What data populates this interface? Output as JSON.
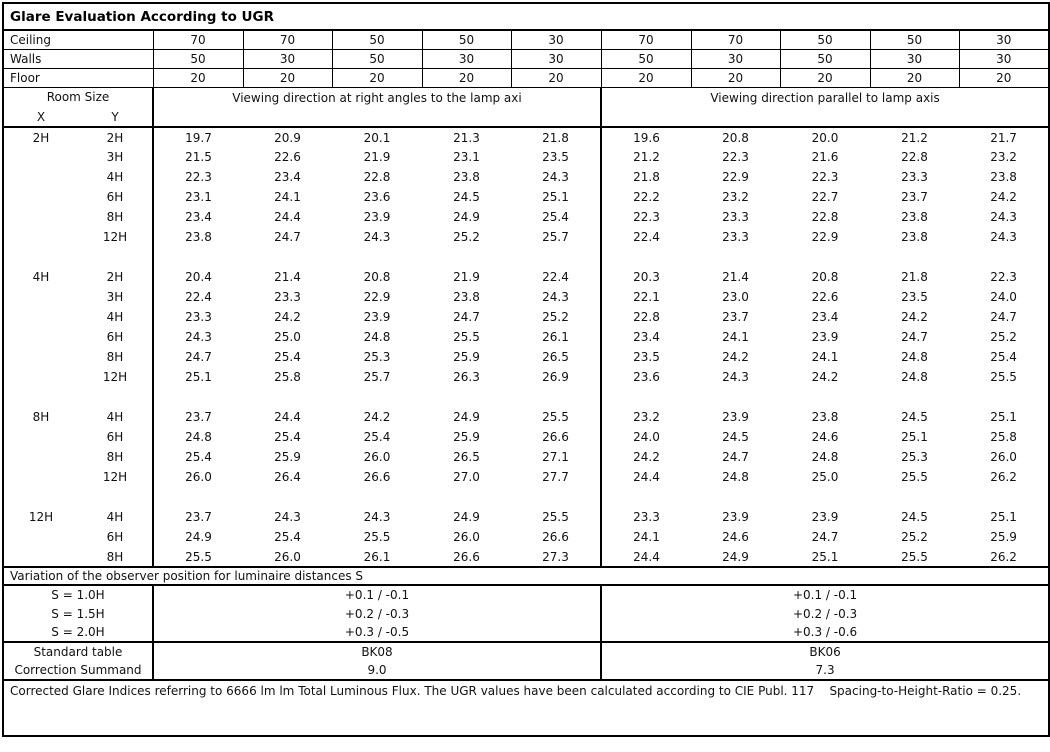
{
  "title": "Glare Evaluation According to UGR",
  "surface_rows": [
    {
      "label": "Ceiling",
      "values": [
        "70",
        "70",
        "50",
        "50",
        "30",
        "70",
        "70",
        "50",
        "50",
        "30"
      ]
    },
    {
      "label": "Walls",
      "values": [
        "50",
        "30",
        "50",
        "30",
        "30",
        "50",
        "30",
        "50",
        "30",
        "30"
      ]
    },
    {
      "label": "Floor",
      "values": [
        "20",
        "20",
        "20",
        "20",
        "20",
        "20",
        "20",
        "20",
        "20",
        "20"
      ]
    }
  ],
  "header": {
    "room_size_label": "Room Size",
    "x_label": "X",
    "y_label": "Y",
    "left_heading": "Viewing direction at right angles to the lamp axi",
    "right_heading": "Viewing direction parallel to lamp axis"
  },
  "groups": [
    {
      "x": "2H",
      "rows": [
        {
          "y": "2H",
          "left": [
            "19.7",
            "20.9",
            "20.1",
            "21.3",
            "21.8"
          ],
          "right": [
            "19.6",
            "20.8",
            "20.0",
            "21.2",
            "21.7"
          ]
        },
        {
          "y": "3H",
          "left": [
            "21.5",
            "22.6",
            "21.9",
            "23.1",
            "23.5"
          ],
          "right": [
            "21.2",
            "22.3",
            "21.6",
            "22.8",
            "23.2"
          ]
        },
        {
          "y": "4H",
          "left": [
            "22.3",
            "23.4",
            "22.8",
            "23.8",
            "24.3"
          ],
          "right": [
            "21.8",
            "22.9",
            "22.3",
            "23.3",
            "23.8"
          ]
        },
        {
          "y": "6H",
          "left": [
            "23.1",
            "24.1",
            "23.6",
            "24.5",
            "25.1"
          ],
          "right": [
            "22.2",
            "23.2",
            "22.7",
            "23.7",
            "24.2"
          ]
        },
        {
          "y": "8H",
          "left": [
            "23.4",
            "24.4",
            "23.9",
            "24.9",
            "25.4"
          ],
          "right": [
            "22.3",
            "23.3",
            "22.8",
            "23.8",
            "24.3"
          ]
        },
        {
          "y": "12H",
          "left": [
            "23.8",
            "24.7",
            "24.3",
            "25.2",
            "25.7"
          ],
          "right": [
            "22.4",
            "23.3",
            "22.9",
            "23.8",
            "24.3"
          ]
        }
      ]
    },
    {
      "x": "4H",
      "rows": [
        {
          "y": "2H",
          "left": [
            "20.4",
            "21.4",
            "20.8",
            "21.9",
            "22.4"
          ],
          "right": [
            "20.3",
            "21.4",
            "20.8",
            "21.8",
            "22.3"
          ]
        },
        {
          "y": "3H",
          "left": [
            "22.4",
            "23.3",
            "22.9",
            "23.8",
            "24.3"
          ],
          "right": [
            "22.1",
            "23.0",
            "22.6",
            "23.5",
            "24.0"
          ]
        },
        {
          "y": "4H",
          "left": [
            "23.3",
            "24.2",
            "23.9",
            "24.7",
            "25.2"
          ],
          "right": [
            "22.8",
            "23.7",
            "23.4",
            "24.2",
            "24.7"
          ]
        },
        {
          "y": "6H",
          "left": [
            "24.3",
            "25.0",
            "24.8",
            "25.5",
            "26.1"
          ],
          "right": [
            "23.4",
            "24.1",
            "23.9",
            "24.7",
            "25.2"
          ]
        },
        {
          "y": "8H",
          "left": [
            "24.7",
            "25.4",
            "25.3",
            "25.9",
            "26.5"
          ],
          "right": [
            "23.5",
            "24.2",
            "24.1",
            "24.8",
            "25.4"
          ]
        },
        {
          "y": "12H",
          "left": [
            "25.1",
            "25.8",
            "25.7",
            "26.3",
            "26.9"
          ],
          "right": [
            "23.6",
            "24.3",
            "24.2",
            "24.8",
            "25.5"
          ]
        }
      ]
    },
    {
      "x": "8H",
      "rows": [
        {
          "y": "4H",
          "left": [
            "23.7",
            "24.4",
            "24.2",
            "24.9",
            "25.5"
          ],
          "right": [
            "23.2",
            "23.9",
            "23.8",
            "24.5",
            "25.1"
          ]
        },
        {
          "y": "6H",
          "left": [
            "24.8",
            "25.4",
            "25.4",
            "25.9",
            "26.6"
          ],
          "right": [
            "24.0",
            "24.5",
            "24.6",
            "25.1",
            "25.8"
          ]
        },
        {
          "y": "8H",
          "left": [
            "25.4",
            "25.9",
            "26.0",
            "26.5",
            "27.1"
          ],
          "right": [
            "24.2",
            "24.7",
            "24.8",
            "25.3",
            "26.0"
          ]
        },
        {
          "y": "12H",
          "left": [
            "26.0",
            "26.4",
            "26.6",
            "27.0",
            "27.7"
          ],
          "right": [
            "24.4",
            "24.8",
            "25.0",
            "25.5",
            "26.2"
          ]
        }
      ]
    },
    {
      "x": "12H",
      "rows": [
        {
          "y": "4H",
          "left": [
            "23.7",
            "24.3",
            "24.3",
            "24.9",
            "25.5"
          ],
          "right": [
            "23.3",
            "23.9",
            "23.9",
            "24.5",
            "25.1"
          ]
        },
        {
          "y": "6H",
          "left": [
            "24.9",
            "25.4",
            "25.5",
            "26.0",
            "26.6"
          ],
          "right": [
            "24.1",
            "24.6",
            "24.7",
            "25.2",
            "25.9"
          ]
        },
        {
          "y": "8H",
          "left": [
            "25.5",
            "26.0",
            "26.1",
            "26.6",
            "27.3"
          ],
          "right": [
            "24.4",
            "24.9",
            "25.1",
            "25.5",
            "26.2"
          ]
        }
      ]
    }
  ],
  "variation": {
    "heading": "Variation of the observer position for luminaire distances S",
    "rows": [
      {
        "label": "S = 1.0H",
        "left": "+0.1 / -0.1",
        "right": "+0.1 / -0.1"
      },
      {
        "label": "S = 1.5H",
        "left": "+0.2 / -0.3",
        "right": "+0.2 / -0.3"
      },
      {
        "label": "S = 2.0H",
        "left": "+0.3 / -0.5",
        "right": "+0.3 / -0.6"
      }
    ]
  },
  "summary": {
    "rows": [
      {
        "label": "Standard table",
        "left": "BK08",
        "right": "BK06"
      },
      {
        "label": "Correction Summand",
        "left": "9.0",
        "right": "7.3"
      }
    ]
  },
  "footnote": "Corrected Glare Indices referring to 6666 lm lm Total Luminous Flux. The UGR values have been calculated according to CIE Publ. 117    Spacing-to-Height-Ratio = 0.25."
}
